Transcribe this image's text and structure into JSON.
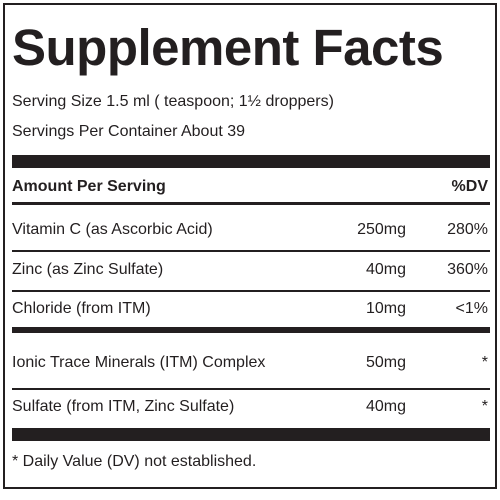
{
  "title": "Supplement Facts",
  "serving_size": "Serving Size 1.5 ml ( teaspoon; 1½ droppers)",
  "servings_per_container": "Servings Per Container About 39",
  "header": {
    "amount": "Amount Per Serving",
    "dv": "%DV"
  },
  "rows": [
    [
      "Vitamin C (as Ascorbic Acid)",
      "250mg",
      "280%"
    ],
    [
      "Zinc (as Zinc Sulfate)",
      "40mg",
      "360%"
    ],
    [
      "Chloride (from ITM)",
      "10mg",
      "<1%"
    ],
    [
      "Ionic Trace Minerals (ITM) Complex",
      "50mg",
      "*"
    ],
    [
      "Sulfate (from ITM, Zinc Sulfate)",
      "40mg",
      "*"
    ]
  ],
  "footnote": "* Daily Value (DV) not established."
}
